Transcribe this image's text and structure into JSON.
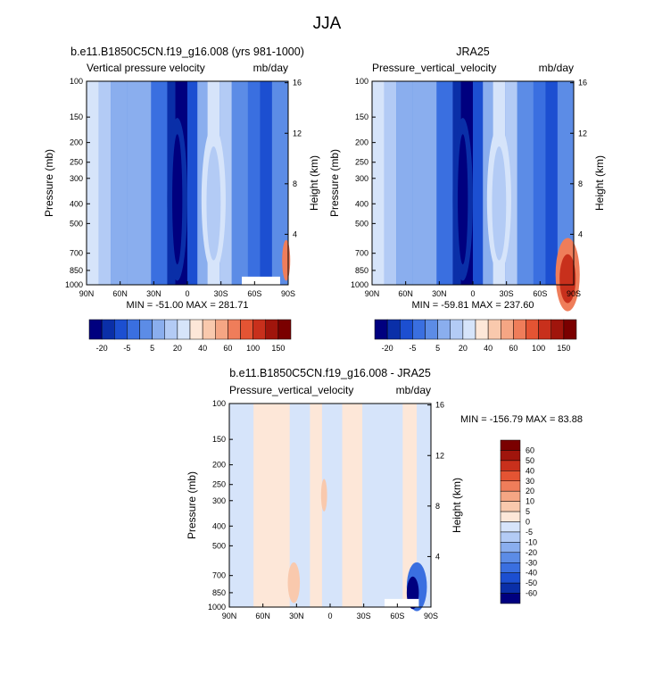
{
  "figure_title": "JJA",
  "chart_data": [
    {
      "type": "heatmap",
      "title": "b.e11.B1850C5CN.f19_g16.008 (yrs 981-1000)",
      "variable_label": "Vertical pressure velocity",
      "units": "mb/day",
      "xlabel": "",
      "ylabel": "Pressure (mb)",
      "ylabel_right": "Height (km)",
      "x_ticks": [
        "90N",
        "60N",
        "30N",
        "0",
        "30S",
        "60S",
        "90S"
      ],
      "y_ticks": [
        "100",
        "150",
        "200",
        "250",
        "300",
        "400",
        "500",
        "700",
        "850",
        "1000"
      ],
      "y_right_ticks": [
        "16",
        "12",
        "8",
        "4"
      ],
      "y_scale": "log",
      "ylim": [
        1000,
        100
      ],
      "min_label": "MIN = -51.00",
      "max_label": "MAX = 281.71",
      "min": -51.0,
      "max": 281.71,
      "colorbar_labels": [
        "-20",
        "-5",
        "5",
        "20",
        "40",
        "60",
        "100",
        "150"
      ],
      "colorbar_orientation": "horizontal"
    },
    {
      "type": "heatmap",
      "title": "JRA25",
      "variable_label": "Pressure_vertical_velocity",
      "units": "mb/day",
      "xlabel": "",
      "ylabel": "Pressure (mb)",
      "ylabel_right": "Height (km)",
      "x_ticks": [
        "90N",
        "60N",
        "30N",
        "0",
        "30S",
        "60S",
        "90S"
      ],
      "y_ticks": [
        "100",
        "150",
        "200",
        "250",
        "300",
        "400",
        "500",
        "700",
        "850",
        "1000"
      ],
      "y_right_ticks": [
        "16",
        "12",
        "8",
        "4"
      ],
      "y_scale": "log",
      "ylim": [
        1000,
        100
      ],
      "min_label": "MIN = -59.81",
      "max_label": "MAX = 237.60",
      "min": -59.81,
      "max": 237.6,
      "colorbar_labels": [
        "-20",
        "-5",
        "5",
        "20",
        "40",
        "60",
        "100",
        "150"
      ],
      "colorbar_orientation": "horizontal"
    },
    {
      "type": "heatmap",
      "title": "b.e11.B1850C5CN.f19_g16.008 - JRA25",
      "variable_label": "Pressure_vertical_velocity",
      "units": "mb/day",
      "xlabel": "",
      "ylabel": "Pressure (mb)",
      "ylabel_right": "Height (km)",
      "x_ticks": [
        "90N",
        "60N",
        "30N",
        "0",
        "30S",
        "60S",
        "90S"
      ],
      "y_ticks": [
        "100",
        "150",
        "200",
        "250",
        "300",
        "400",
        "500",
        "700",
        "850",
        "1000"
      ],
      "y_right_ticks": [
        "16",
        "12",
        "8",
        "4"
      ],
      "y_scale": "log",
      "ylim": [
        1000,
        100
      ],
      "min_label": "MIN = -156.79",
      "max_label": "MAX = 83.88",
      "min": -156.79,
      "max": 83.88,
      "colorbar_labels": [
        "60",
        "50",
        "40",
        "30",
        "20",
        "10",
        "5",
        "0",
        "-5",
        "-10",
        "-20",
        "-30",
        "-40",
        "-50",
        "-60"
      ],
      "colorbar_orientation": "vertical"
    }
  ],
  "colors": {
    "seq_pos": [
      "#00007f",
      "#0a2fa8",
      "#1c4fd1",
      "#3a6fe0",
      "#5c8ce6",
      "#8aaeee",
      "#b3cbf5",
      "#d6e4fa",
      "#fde7d8",
      "#f9c9ad",
      "#f5a684",
      "#ef7d5a",
      "#e45433",
      "#c8301c",
      "#a0150c",
      "#7a0000"
    ],
    "diff": [
      "#7a0000",
      "#a0150c",
      "#c8301c",
      "#e45433",
      "#ef7d5a",
      "#f5a684",
      "#f9c9ad",
      "#fde7d8",
      "#d6e4fa",
      "#b3cbf5",
      "#8aaeee",
      "#5c8ce6",
      "#3a6fe0",
      "#1c4fd1",
      "#0a2fa8",
      "#00007f"
    ]
  }
}
